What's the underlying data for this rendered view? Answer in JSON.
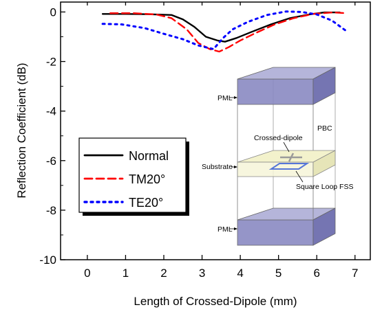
{
  "chart_data": {
    "type": "line",
    "title": "",
    "xlabel": "Length of Crossed-Dipole (mm)",
    "ylabel": "Reflection Coefficient (dB)",
    "xlim": [
      -0.7,
      7.4
    ],
    "ylim": [
      -10,
      0.4
    ],
    "xticks": [
      0,
      1,
      2,
      3,
      4,
      5,
      6,
      7
    ],
    "yticks": [
      0,
      -2,
      -4,
      -6,
      -8,
      -10
    ],
    "grid": false,
    "legend_position": "center-left",
    "series": [
      {
        "name": "Normal",
        "color": "#000000",
        "style": "solid",
        "x": [
          0.4,
          1.0,
          1.6,
          2.2,
          2.5,
          2.8,
          3.1,
          3.4,
          3.6,
          3.9,
          4.3,
          4.8,
          5.3,
          5.8,
          6.2,
          6.6
        ],
        "y": [
          -0.08,
          -0.08,
          -0.09,
          -0.12,
          -0.3,
          -0.6,
          -1.0,
          -1.15,
          -1.2,
          -1.05,
          -0.8,
          -0.5,
          -0.25,
          -0.1,
          -0.02,
          -0.02
        ]
      },
      {
        "name": "TM20°",
        "color": "#ff0000",
        "style": "dashed",
        "x": [
          0.6,
          1.2,
          1.8,
          2.2,
          2.6,
          2.9,
          3.2,
          3.45,
          3.7,
          4.0,
          4.4,
          4.9,
          5.4,
          5.9,
          6.4,
          6.8
        ],
        "y": [
          -0.05,
          -0.05,
          -0.1,
          -0.25,
          -0.7,
          -1.25,
          -1.5,
          -1.6,
          -1.42,
          -1.15,
          -0.85,
          -0.5,
          -0.25,
          -0.08,
          -0.02,
          -0.05
        ]
      },
      {
        "name": "TE20°",
        "color": "#0000ff",
        "style": "dotted",
        "x": [
          0.4,
          0.9,
          1.5,
          2.0,
          2.5,
          2.9,
          3.3,
          3.55,
          3.8,
          4.2,
          4.7,
          5.2,
          5.6,
          6.0,
          6.4,
          6.8
        ],
        "y": [
          -0.48,
          -0.5,
          -0.65,
          -0.88,
          -1.1,
          -1.35,
          -1.5,
          -1.05,
          -0.7,
          -0.4,
          -0.12,
          0.02,
          0.0,
          -0.1,
          -0.35,
          -0.8
        ]
      }
    ],
    "inset": {
      "labels": {
        "pml_top": "PML",
        "pbc": "PBC",
        "crossed_dipole": "Crossed-dipole",
        "substrate": "Substrate",
        "square_loop": "Square Loop FSS",
        "pml_bottom": "PML"
      },
      "colors": {
        "pml": "#8a8ac2",
        "substrate": "#f3f2cc",
        "loop": "#5575d8",
        "dipole": "#9a9a9a",
        "edges": "#777777"
      }
    }
  }
}
